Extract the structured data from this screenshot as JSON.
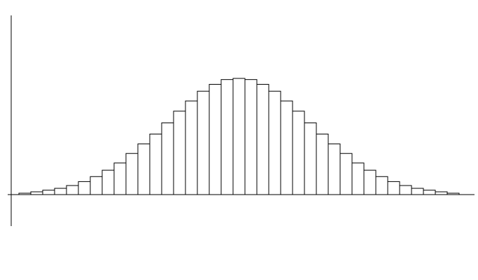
{
  "chart_data": {
    "type": "bar",
    "title": "",
    "xlabel": "",
    "ylabel": "",
    "grid": false,
    "legend": "none",
    "bar_fill": "#ffffff",
    "bar_stroke": "#000000",
    "axis_color": "#000000",
    "ylim": [
      -0.27,
      1.0
    ],
    "values": [
      0.012,
      0.024,
      0.038,
      0.054,
      0.078,
      0.112,
      0.155,
      0.21,
      0.272,
      0.354,
      0.436,
      0.521,
      0.617,
      0.718,
      0.806,
      0.89,
      0.949,
      0.99,
      1.0,
      0.99,
      0.949,
      0.89,
      0.806,
      0.718,
      0.617,
      0.521,
      0.436,
      0.354,
      0.272,
      0.21,
      0.155,
      0.112,
      0.078,
      0.054,
      0.038,
      0.024,
      0.012
    ]
  }
}
